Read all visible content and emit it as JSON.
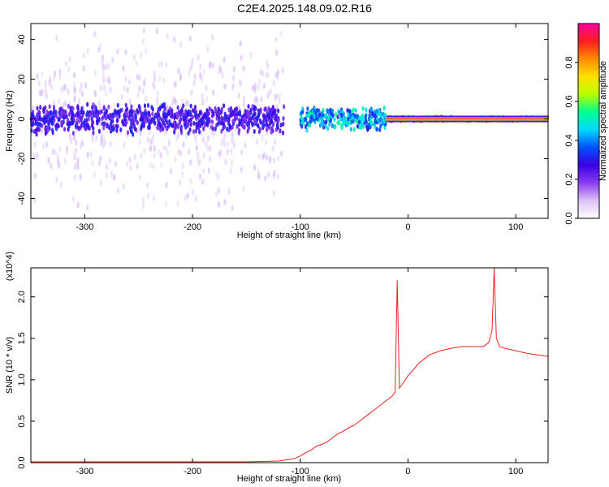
{
  "title": "C2E4.2025.148.09.02.R16",
  "chart_data": [
    {
      "type": "heatmap",
      "title": "C2E4.2025.148.09.02.R16",
      "xlabel": "Height of straight line (km)",
      "ylabel": "Frequency (Hz)",
      "xlim": [
        -350,
        130
      ],
      "ylim": [
        -50,
        48
      ],
      "xticks": [
        -300,
        -200,
        -100,
        0,
        100
      ],
      "yticks": [
        -40,
        -20,
        0,
        20,
        40
      ],
      "colorbar": {
        "label": "Normalized spectral amplitude",
        "range": [
          0,
          1
        ],
        "ticks": [
          0.0,
          0.2,
          0.4,
          0.6,
          0.8
        ],
        "colors": [
          "#ffffff",
          "#dcc3f5",
          "#8a3df0",
          "#3a00e6",
          "#0050ff",
          "#00d8ff",
          "#00ff90",
          "#b8ff00",
          "#ffe000",
          "#ff8a00",
          "#ff1e1e",
          "#ff00a0"
        ]
      },
      "bands": [
        {
          "x_from": -350,
          "x_to": -115,
          "amplitude": 0.1,
          "freq_spread_hz": 48
        },
        {
          "x_from": -350,
          "x_to": -115,
          "amplitude": 0.3,
          "freq_spread_hz": 8
        },
        {
          "x_from": -100,
          "x_to": -20,
          "amplitude": 0.5,
          "freq_spread_hz": 6
        },
        {
          "x_from": -20,
          "x_to": 130,
          "amplitude": 0.95,
          "freq_spread_hz": 1
        }
      ]
    },
    {
      "type": "line",
      "xlabel": "Height of straight line (km)",
      "ylabel": "SNR (10 * v/v)",
      "y_multiplier": "(x10^4)",
      "xlim": [
        -350,
        130
      ],
      "ylim": [
        0,
        2.35
      ],
      "xticks": [
        -300,
        -200,
        -100,
        0,
        100
      ],
      "yticks": [
        0.0,
        0.5,
        1.0,
        1.5,
        2.0
      ],
      "ytick_labels": [
        "0.0",
        "0.5",
        "1.0",
        "1.5",
        "2.0"
      ],
      "series_color": "#ee2222",
      "series": [
        {
          "x": [
            -350,
            -300,
            -250,
            -200,
            -150,
            -120,
            -105,
            -100,
            -95,
            -90,
            -85,
            -80,
            -75,
            -70,
            -65,
            -60,
            -55,
            -50,
            -45,
            -40,
            -35,
            -30,
            -25,
            -20,
            -15,
            -12,
            -10,
            -8,
            -5,
            0,
            5,
            10,
            15,
            20,
            30,
            40,
            50,
            60,
            70,
            75,
            78,
            80,
            82,
            85,
            90,
            100,
            110,
            120,
            130
          ],
          "y": [
            0.01,
            0.01,
            0.01,
            0.01,
            0.01,
            0.02,
            0.05,
            0.08,
            0.12,
            0.15,
            0.2,
            0.22,
            0.25,
            0.3,
            0.35,
            0.38,
            0.42,
            0.45,
            0.5,
            0.55,
            0.6,
            0.65,
            0.7,
            0.75,
            0.8,
            0.85,
            2.2,
            0.9,
            0.95,
            1.05,
            1.12,
            1.2,
            1.25,
            1.3,
            1.35,
            1.38,
            1.4,
            1.4,
            1.4,
            1.45,
            1.6,
            2.35,
            1.5,
            1.4,
            1.38,
            1.35,
            1.32,
            1.3,
            1.28
          ]
        }
      ]
    }
  ]
}
